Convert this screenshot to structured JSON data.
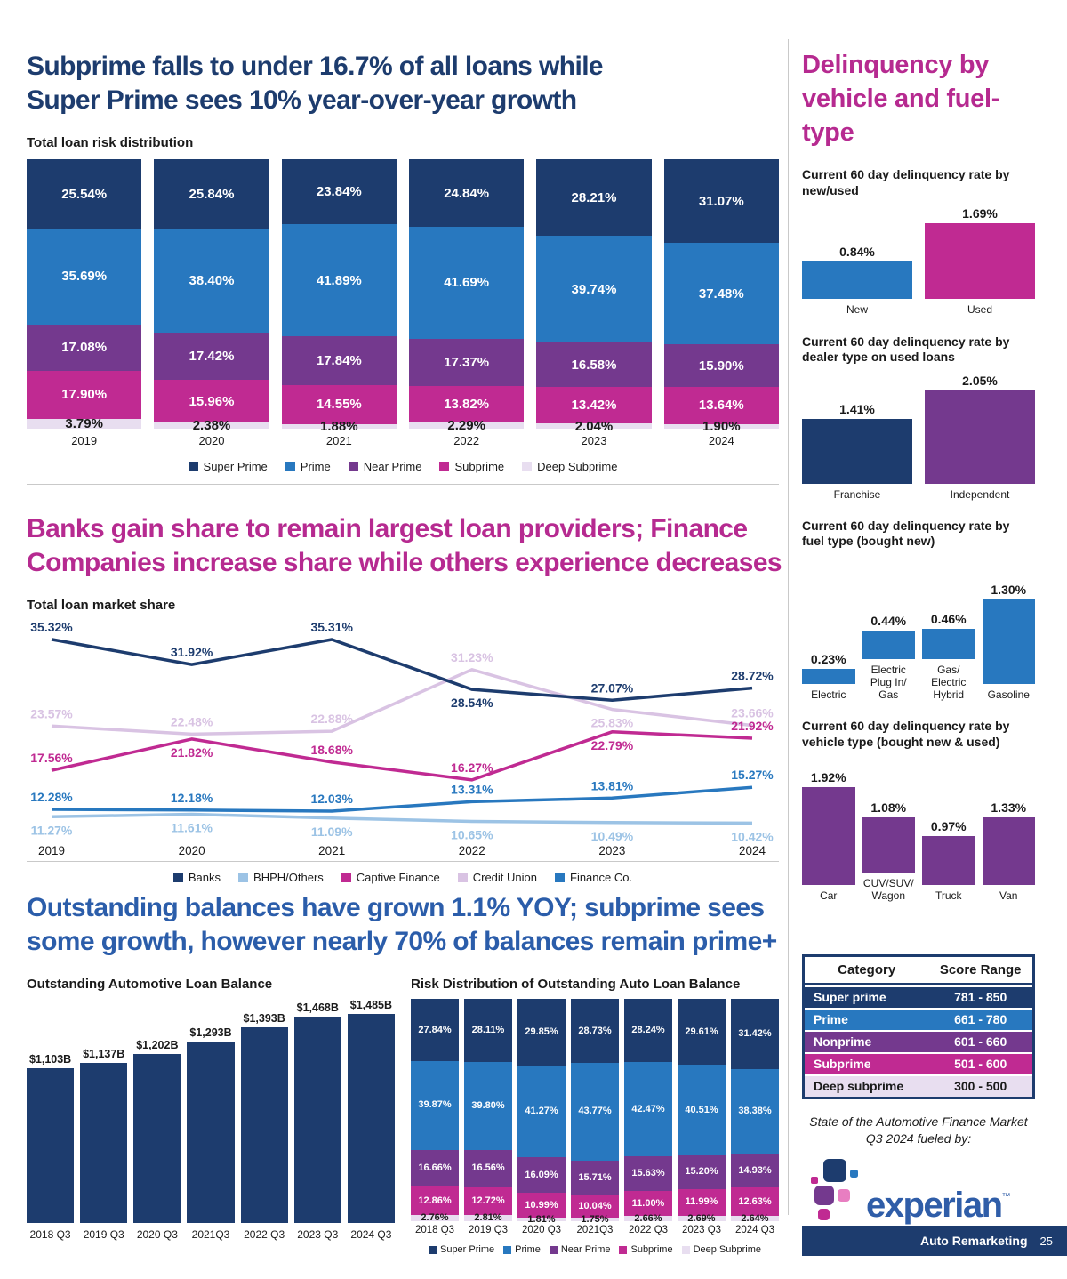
{
  "colors": {
    "navy": "#1d3c6e",
    "blue": "#2878bf",
    "purple": "#74398e",
    "magenta": "#c02a92",
    "lavender": "#e8def0",
    "lightblue": "#9cc3e5",
    "lavender_line": "#d9c3e3",
    "pink": "#e87ec1",
    "text_dark": "#1a1a1a",
    "title_navy": "#1d3c6e",
    "title_magenta": "#b62a90",
    "title_blue": "#2b5daa",
    "experian_blue": "#2f5da8"
  },
  "sections": {
    "loan_risk": {
      "title_line1": "Subprime falls to under 16.7% of all loans while",
      "title_line2": "Super Prime sees 10% year-over-year growth"
    },
    "market_share": {
      "title_line1": "Banks gain share to remain largest loan providers; Finance",
      "title_line2": "Companies increase share while others experience decreases"
    },
    "balances": {
      "title_line1": "Outstanding balances have grown 1.1% YOY; subprime sees",
      "title_line2": "some growth, however nearly 70% of balances remain prime+"
    }
  },
  "right_column": {
    "title": "Delinquency by vehicle and fuel-type",
    "credit": "State of the Automotive Finance Market Q3 2024 fueled by:",
    "logo_text": "experian",
    "trademark": "™"
  },
  "footer": {
    "brand": "Auto Remarketing",
    "page_number": "25"
  },
  "chart_data": [
    {
      "id": "loan_risk_distribution",
      "type": "bar",
      "variant": "stacked",
      "subtitle": "Total loan risk distribution",
      "categories": [
        "2019",
        "2020",
        "2021",
        "2022",
        "2023",
        "2024"
      ],
      "ylim": [
        0,
        100
      ],
      "legend_position": "bottom",
      "series": [
        {
          "name": "Super Prime",
          "color_key": "navy",
          "values": [
            25.54,
            25.84,
            23.84,
            24.84,
            28.21,
            31.07
          ]
        },
        {
          "name": "Prime",
          "color_key": "blue",
          "values": [
            35.69,
            38.4,
            41.89,
            41.69,
            39.74,
            37.48
          ]
        },
        {
          "name": "Near Prime",
          "color_key": "purple",
          "values": [
            17.08,
            17.42,
            17.84,
            17.37,
            16.58,
            15.9
          ]
        },
        {
          "name": "Subprime",
          "color_key": "magenta",
          "values": [
            17.9,
            15.96,
            14.55,
            13.82,
            13.42,
            13.64
          ]
        },
        {
          "name": "Deep Subprime",
          "color_key": "lavender",
          "label_dark": true,
          "values": [
            3.79,
            2.38,
            1.88,
            2.29,
            2.04,
            1.9
          ]
        }
      ]
    },
    {
      "id": "loan_market_share",
      "type": "line",
      "subtitle": "Total loan market share",
      "x": [
        "2019",
        "2020",
        "2021",
        "2022",
        "2023",
        "2024"
      ],
      "ylim": [
        10,
        36
      ],
      "legend_position": "bottom",
      "series": [
        {
          "name": "Banks",
          "color_key": "navy",
          "values": [
            35.32,
            31.92,
            35.31,
            28.54,
            27.07,
            28.72
          ]
        },
        {
          "name": "BHPH/Others",
          "color_key": "lightblue",
          "values": [
            11.27,
            11.61,
            11.09,
            10.65,
            10.49,
            10.42
          ]
        },
        {
          "name": "Captive Finance",
          "color_key": "magenta",
          "values": [
            17.56,
            21.82,
            18.68,
            16.27,
            22.79,
            21.92
          ]
        },
        {
          "name": "Credit Union",
          "color_key": "lavender_line",
          "values": [
            23.57,
            22.48,
            22.88,
            31.23,
            25.83,
            23.66
          ]
        },
        {
          "name": "Finance Co.",
          "color_key": "blue",
          "values": [
            12.28,
            12.18,
            12.03,
            13.31,
            13.81,
            15.27
          ]
        }
      ]
    },
    {
      "id": "outstanding_balance",
      "type": "bar",
      "subtitle": "Outstanding Automotive Loan Balance",
      "categories": [
        "2018 Q3",
        "2019 Q3",
        "2020 Q3",
        "2021Q3",
        "2022 Q3",
        "2023 Q3",
        "2024 Q3"
      ],
      "values": [
        1103,
        1137,
        1202,
        1293,
        1393,
        1468,
        1485
      ],
      "labels": [
        "$1,103B",
        "$1,137B",
        "$1,202B",
        "$1,293B",
        "$1,393B",
        "$1,468B",
        "$1,485B"
      ],
      "unit": "$B",
      "bar_color_key": "navy"
    },
    {
      "id": "outstanding_risk_distribution",
      "type": "bar",
      "variant": "stacked",
      "subtitle": "Risk Distribution of Outstanding Auto Loan Balance",
      "categories": [
        "2018 Q3",
        "2019 Q3",
        "2020 Q3",
        "2021Q3",
        "2022 Q3",
        "2023 Q3",
        "2024 Q3"
      ],
      "ylim": [
        0,
        100
      ],
      "legend_position": "bottom",
      "series": [
        {
          "name": "Super Prime",
          "color_key": "navy",
          "values": [
            27.84,
            28.11,
            29.85,
            28.73,
            28.24,
            29.61,
            31.42
          ]
        },
        {
          "name": "Prime",
          "color_key": "blue",
          "values": [
            39.87,
            39.8,
            41.27,
            43.77,
            42.47,
            40.51,
            38.38
          ]
        },
        {
          "name": "Near Prime",
          "color_key": "purple",
          "values": [
            16.66,
            16.56,
            16.09,
            15.71,
            15.63,
            15.2,
            14.93
          ]
        },
        {
          "name": "Subprime",
          "color_key": "magenta",
          "values": [
            12.86,
            12.72,
            10.99,
            10.04,
            11.0,
            11.99,
            12.63
          ]
        },
        {
          "name": "Deep Subprime",
          "color_key": "lavender",
          "label_dark": true,
          "values": [
            2.76,
            2.81,
            1.81,
            1.75,
            2.66,
            2.69,
            2.64
          ]
        }
      ]
    },
    {
      "id": "delinquency_new_used",
      "type": "bar",
      "title": "Current 60 day delinquency rate by new/used",
      "categories": [
        "New",
        "Used"
      ],
      "values": [
        0.84,
        1.69
      ],
      "colors": [
        "blue",
        "magenta"
      ]
    },
    {
      "id": "delinquency_dealer_type",
      "type": "bar",
      "title": "Current 60 day delinquency rate by dealer type on used loans",
      "categories": [
        "Franchise",
        "Independent"
      ],
      "values": [
        1.41,
        2.05
      ],
      "colors": [
        "navy",
        "purple"
      ]
    },
    {
      "id": "delinquency_fuel_type",
      "type": "bar",
      "title": "Current 60 day delinquency rate by fuel type (bought new)",
      "categories": [
        "Electric",
        "Electric Plug In/ Gas",
        "Gas/ Electric Hybrid",
        "Gasoline"
      ],
      "values": [
        0.23,
        0.44,
        0.46,
        1.3
      ],
      "colors": [
        "blue",
        "blue",
        "blue",
        "blue"
      ]
    },
    {
      "id": "delinquency_vehicle_type",
      "type": "bar",
      "title": "Current 60 day delinquency rate by vehicle type (bought new & used)",
      "categories": [
        "Car",
        "CUV/SUV/ Wagon",
        "Truck",
        "Van"
      ],
      "values": [
        1.92,
        1.08,
        0.97,
        1.33
      ],
      "colors": [
        "purple",
        "purple",
        "purple",
        "purple"
      ]
    },
    {
      "id": "score_range_table",
      "type": "table",
      "headers": [
        "Category",
        "Score Range"
      ],
      "rows": [
        {
          "category": "Super prime",
          "range": "781 - 850",
          "color_key": "navy"
        },
        {
          "category": "Prime",
          "range": "661 - 780",
          "color_key": "blue"
        },
        {
          "category": "Nonprime",
          "range": "601 - 660",
          "color_key": "purple"
        },
        {
          "category": "Subprime",
          "range": "501 - 600",
          "color_key": "magenta"
        },
        {
          "category": "Deep subprime",
          "range": "300 - 500",
          "color_key": "lavender",
          "label_dark": true
        }
      ]
    }
  ]
}
